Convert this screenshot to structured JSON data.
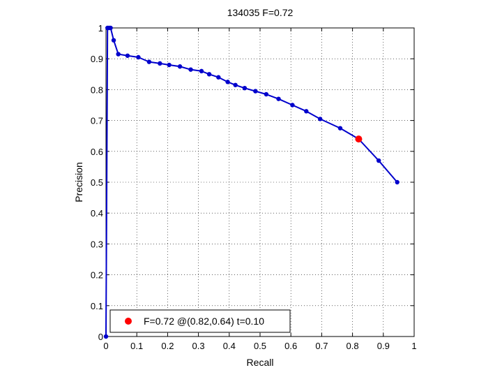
{
  "chart_data": {
    "type": "line",
    "title": "134035 F=0.72",
    "xlabel": "Recall",
    "ylabel": "Precision",
    "xlim": [
      0,
      1
    ],
    "ylim": [
      0,
      1
    ],
    "xticks": [
      "0",
      "0.1",
      "0.2",
      "0.3",
      "0.4",
      "0.5",
      "0.6",
      "0.7",
      "0.8",
      "0.9",
      "1"
    ],
    "yticks": [
      "0",
      "0.1",
      "0.2",
      "0.3",
      "0.4",
      "0.5",
      "0.6",
      "0.7",
      "0.8",
      "0.9",
      "1"
    ],
    "grid": true,
    "legend_position": "bottom-left",
    "series": [
      {
        "color": "#0000cc",
        "x": [
          0,
          0.005,
          0.01,
          0.015,
          0.025,
          0.04,
          0.07,
          0.105,
          0.14,
          0.175,
          0.205,
          0.24,
          0.275,
          0.31,
          0.335,
          0.365,
          0.395,
          0.42,
          0.45,
          0.485,
          0.52,
          0.56,
          0.605,
          0.65,
          0.695,
          0.76,
          0.82,
          0.885,
          0.945
        ],
        "y": [
          0,
          1.0,
          1.0,
          1.0,
          0.96,
          0.915,
          0.91,
          0.905,
          0.89,
          0.885,
          0.88,
          0.875,
          0.865,
          0.86,
          0.85,
          0.84,
          0.825,
          0.815,
          0.805,
          0.795,
          0.785,
          0.77,
          0.75,
          0.73,
          0.705,
          0.675,
          0.64,
          0.57,
          0.5
        ]
      }
    ],
    "highlight": {
      "x": 0.82,
      "y": 0.64,
      "color": "#ff0000"
    },
    "legend": {
      "label": "F=0.72 @(0.82,0.64) t=0.10",
      "color": "#ff0000"
    }
  }
}
